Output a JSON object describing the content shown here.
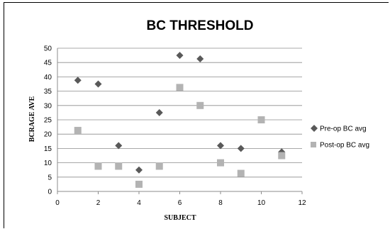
{
  "chart_data": {
    "type": "scatter",
    "title": "BC THRESHOLD",
    "xlabel": "SUBJECT",
    "ylabel": "BCRAGE AVE",
    "xlim": [
      0,
      12
    ],
    "ylim": [
      0,
      50
    ],
    "xticks": [
      0,
      2,
      4,
      6,
      8,
      10,
      12
    ],
    "yticks": [
      0,
      5,
      10,
      15,
      20,
      25,
      30,
      35,
      40,
      45,
      50
    ],
    "grid": "horizontal",
    "legend_position": "right",
    "series": [
      {
        "name": "Pre-op BC avg",
        "marker": "diamond",
        "color": "#595959",
        "points": [
          [
            1,
            38.8
          ],
          [
            2,
            37.5
          ],
          [
            3,
            16
          ],
          [
            4,
            7.5
          ],
          [
            5,
            27.5
          ],
          [
            6,
            47.5
          ],
          [
            7,
            46.3
          ],
          [
            8,
            16
          ],
          [
            9,
            15
          ],
          [
            11,
            13.8
          ]
        ]
      },
      {
        "name": "Post-op BC avg",
        "marker": "square",
        "color": "#b3b3b3",
        "points": [
          [
            1,
            21.3
          ],
          [
            2,
            8.8
          ],
          [
            3,
            8.8
          ],
          [
            4,
            2.5
          ],
          [
            5,
            8.8
          ],
          [
            6,
            36.3
          ],
          [
            7,
            30
          ],
          [
            8,
            10
          ],
          [
            9,
            6.3
          ],
          [
            10,
            25
          ],
          [
            11,
            12.5
          ]
        ]
      }
    ]
  }
}
